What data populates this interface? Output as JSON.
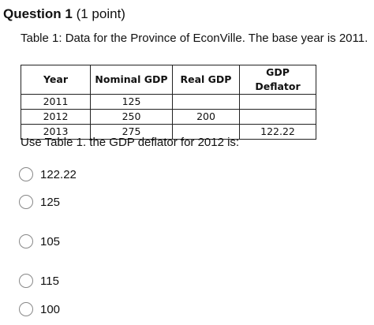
{
  "question": {
    "title": "Question 1",
    "points": "(1 point)",
    "intro": "Table 1: Data for the Province of EconVille. The base year is 2011.",
    "table": {
      "header": [
        "Year",
        "Nominal GDP",
        "Real GDP",
        "GDP Deflator"
      ],
      "rows": [
        [
          "2011",
          "125",
          null,
          null
        ],
        [
          "2012",
          "250",
          "200",
          null
        ],
        [
          "2013",
          "275",
          null,
          "122.22"
        ]
      ]
    },
    "prompt": "Use Table 1. the GDP deflator for 2012 is:",
    "options": [
      "122.22",
      "125",
      "105",
      "115",
      "100"
    ]
  }
}
